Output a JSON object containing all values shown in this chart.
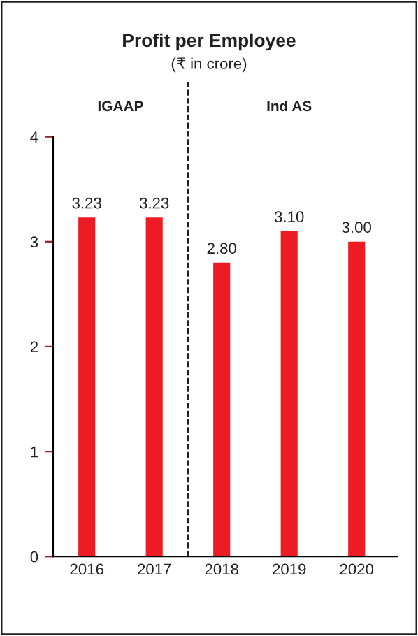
{
  "chart_data": {
    "type": "bar",
    "title": "Profit per Employee",
    "subtitle": "(₹ in crore)",
    "x": [
      2016,
      2017,
      2018,
      2019,
      2020
    ],
    "values": [
      3.23,
      3.23,
      2.8,
      3.1,
      3.0
    ],
    "value_labels": [
      "3.23",
      "3.23",
      "2.80",
      "3.10",
      "3.00"
    ],
    "color": "#ed1c24",
    "xlim": [
      2015.5,
      2020.6
    ],
    "xticks": [
      2016,
      2017,
      2018,
      2019,
      2020
    ],
    "ylim": [
      0,
      4
    ],
    "yticks": [
      0,
      1,
      2,
      3,
      4
    ],
    "ref_lines": [
      {
        "axis": "x",
        "value": 2017.5,
        "line_style": "dashed",
        "color": "#231f20"
      }
    ],
    "annotations": [
      "IGAAP",
      "Ind AS"
    ],
    "grid": false,
    "legend": false
  }
}
